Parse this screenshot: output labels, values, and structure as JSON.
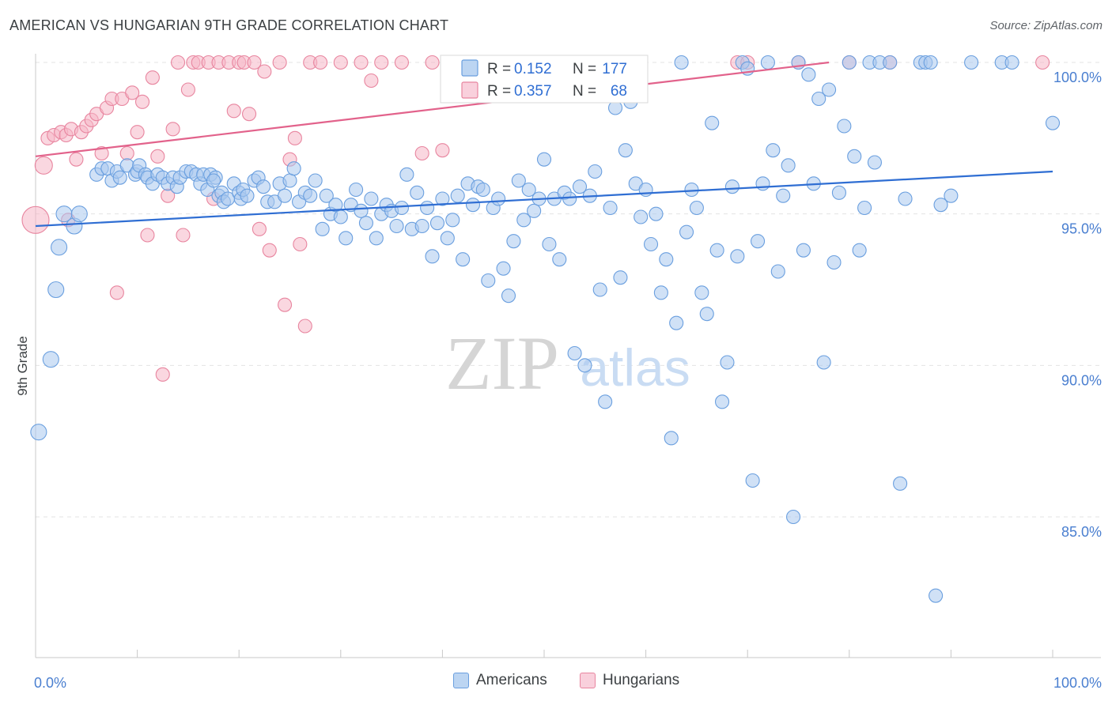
{
  "title": "AMERICAN VS HUNGARIAN 9TH GRADE CORRELATION CHART",
  "source": "Source: ZipAtlas.com",
  "watermark": {
    "zip": "ZIP",
    "atlas": "atlas"
  },
  "chart_data": {
    "type": "scatter",
    "title": "AMERICAN VS HUNGARIAN 9TH GRADE CORRELATION CHART",
    "xlabel": "",
    "ylabel": "9th Grade",
    "xlim": [
      0,
      100
    ],
    "ylim": [
      80.5,
      100.6
    ],
    "x_tick_labels": [
      "0.0%",
      "100.0%"
    ],
    "y_ticks": [
      85,
      90,
      95,
      100
    ],
    "y_tick_labels": [
      "85.0%",
      "90.0%",
      "95.0%",
      "100.0%"
    ],
    "grid": true,
    "legend_position": "top-center",
    "stats": [
      {
        "r_label": "R =",
        "r_value": "0.152",
        "n_label": "N =",
        "n_value": "177"
      },
      {
        "r_label": "R =",
        "r_value": "0.357",
        "n_label": "N =",
        "n_value": "68"
      }
    ],
    "series": [
      {
        "name": "Americans",
        "color": "#6a9fdf",
        "fill": "#a9c8ef",
        "trend": {
          "x": [
            0,
            100
          ],
          "y": [
            94.6,
            96.4
          ]
        },
        "points": [
          [
            0.3,
            87.8
          ],
          [
            1.5,
            90.2
          ],
          [
            2.0,
            92.5
          ],
          [
            2.3,
            93.9
          ],
          [
            2.8,
            95.0
          ],
          [
            3.8,
            94.6
          ],
          [
            4.3,
            95.0
          ],
          [
            6.0,
            96.3
          ],
          [
            6.5,
            96.5
          ],
          [
            7.1,
            96.5
          ],
          [
            7.5,
            96.1
          ],
          [
            8.0,
            96.4
          ],
          [
            8.3,
            96.2
          ],
          [
            9.0,
            96.6
          ],
          [
            9.8,
            96.3
          ],
          [
            10.0,
            96.4
          ],
          [
            10.2,
            96.6
          ],
          [
            10.8,
            96.3
          ],
          [
            11.0,
            96.2
          ],
          [
            11.5,
            96.0
          ],
          [
            12.0,
            96.3
          ],
          [
            12.5,
            96.2
          ],
          [
            13.0,
            96.0
          ],
          [
            13.5,
            96.2
          ],
          [
            13.9,
            95.9
          ],
          [
            14.2,
            96.2
          ],
          [
            14.8,
            96.4
          ],
          [
            15.3,
            96.4
          ],
          [
            15.8,
            96.3
          ],
          [
            16.2,
            96.0
          ],
          [
            16.5,
            96.3
          ],
          [
            16.9,
            95.8
          ],
          [
            17.2,
            96.3
          ],
          [
            17.7,
            96.2
          ],
          [
            17.5,
            96.1
          ],
          [
            18.0,
            95.6
          ],
          [
            18.3,
            95.7
          ],
          [
            18.5,
            95.4
          ],
          [
            18.9,
            95.5
          ],
          [
            19.5,
            96.0
          ],
          [
            20.0,
            95.7
          ],
          [
            20.2,
            95.5
          ],
          [
            20.4,
            95.8
          ],
          [
            20.8,
            95.6
          ],
          [
            21.5,
            96.1
          ],
          [
            21.9,
            96.2
          ],
          [
            22.4,
            95.9
          ],
          [
            22.8,
            95.4
          ],
          [
            23.5,
            95.4
          ],
          [
            24.0,
            96.0
          ],
          [
            24.5,
            95.6
          ],
          [
            25.0,
            96.1
          ],
          [
            25.4,
            96.5
          ],
          [
            25.9,
            95.4
          ],
          [
            26.5,
            95.7
          ],
          [
            27.0,
            95.6
          ],
          [
            27.5,
            96.1
          ],
          [
            28.2,
            94.5
          ],
          [
            28.6,
            95.6
          ],
          [
            29.0,
            95.0
          ],
          [
            29.5,
            95.3
          ],
          [
            30.0,
            94.9
          ],
          [
            30.5,
            94.2
          ],
          [
            31.0,
            95.3
          ],
          [
            31.5,
            95.8
          ],
          [
            32.0,
            95.1
          ],
          [
            32.5,
            94.7
          ],
          [
            33.0,
            95.5
          ],
          [
            33.5,
            94.2
          ],
          [
            34.0,
            95.0
          ],
          [
            34.5,
            95.3
          ],
          [
            35.0,
            95.1
          ],
          [
            35.5,
            94.6
          ],
          [
            36.0,
            95.2
          ],
          [
            36.5,
            96.3
          ],
          [
            37.0,
            94.5
          ],
          [
            37.5,
            95.7
          ],
          [
            38.0,
            94.6
          ],
          [
            38.5,
            95.2
          ],
          [
            39.0,
            93.6
          ],
          [
            39.5,
            94.7
          ],
          [
            40.0,
            95.5
          ],
          [
            40.5,
            94.2
          ],
          [
            41.0,
            94.8
          ],
          [
            41.5,
            95.6
          ],
          [
            42.0,
            93.5
          ],
          [
            42.5,
            96.0
          ],
          [
            43.0,
            95.3
          ],
          [
            43.5,
            95.9
          ],
          [
            44.0,
            95.8
          ],
          [
            44.5,
            92.8
          ],
          [
            45.0,
            95.2
          ],
          [
            45.5,
            95.5
          ],
          [
            46.0,
            93.2
          ],
          [
            46.5,
            92.3
          ],
          [
            47.0,
            94.1
          ],
          [
            47.5,
            96.1
          ],
          [
            48.0,
            94.8
          ],
          [
            48.5,
            95.8
          ],
          [
            49.0,
            95.1
          ],
          [
            49.5,
            95.5
          ],
          [
            50.0,
            96.8
          ],
          [
            50.5,
            94.0
          ],
          [
            51.0,
            95.5
          ],
          [
            51.5,
            93.5
          ],
          [
            52.0,
            95.7
          ],
          [
            52.5,
            95.5
          ],
          [
            53.0,
            90.4
          ],
          [
            53.5,
            95.9
          ],
          [
            54.0,
            90.0
          ],
          [
            54.5,
            95.6
          ],
          [
            55.0,
            96.4
          ],
          [
            55.5,
            92.5
          ],
          [
            56.0,
            88.8
          ],
          [
            56.5,
            95.2
          ],
          [
            57.0,
            98.5
          ],
          [
            57.5,
            92.9
          ],
          [
            58.0,
            97.1
          ],
          [
            58.5,
            98.7
          ],
          [
            59.0,
            96.0
          ],
          [
            59.5,
            94.9
          ],
          [
            60.0,
            95.8
          ],
          [
            60.5,
            94.0
          ],
          [
            61.0,
            95.0
          ],
          [
            61.5,
            92.4
          ],
          [
            62.0,
            93.5
          ],
          [
            62.5,
            87.6
          ],
          [
            63.0,
            91.4
          ],
          [
            63.5,
            100.0
          ],
          [
            64.0,
            94.4
          ],
          [
            64.5,
            95.8
          ],
          [
            65.0,
            95.2
          ],
          [
            65.5,
            92.4
          ],
          [
            66.0,
            91.7
          ],
          [
            66.5,
            98.0
          ],
          [
            67.0,
            93.8
          ],
          [
            67.5,
            88.8
          ],
          [
            68.0,
            90.1
          ],
          [
            68.5,
            95.9
          ],
          [
            69.0,
            93.6
          ],
          [
            69.5,
            100.0
          ],
          [
            70.0,
            99.8
          ],
          [
            70.5,
            86.2
          ],
          [
            71.0,
            94.1
          ],
          [
            71.5,
            96.0
          ],
          [
            72.0,
            100.0
          ],
          [
            72.5,
            97.1
          ],
          [
            73.0,
            93.1
          ],
          [
            73.5,
            95.6
          ],
          [
            74.0,
            96.6
          ],
          [
            74.5,
            85.0
          ],
          [
            75.0,
            100.0
          ],
          [
            75.5,
            93.8
          ],
          [
            76.0,
            99.6
          ],
          [
            76.5,
            96.0
          ],
          [
            77.0,
            98.8
          ],
          [
            77.5,
            90.1
          ],
          [
            78.0,
            99.1
          ],
          [
            78.5,
            93.4
          ],
          [
            79.0,
            95.7
          ],
          [
            79.5,
            97.9
          ],
          [
            80.0,
            100.0
          ],
          [
            80.5,
            96.9
          ],
          [
            81.0,
            93.8
          ],
          [
            81.5,
            95.2
          ],
          [
            82.0,
            100.0
          ],
          [
            82.5,
            96.7
          ],
          [
            83.0,
            100.0
          ],
          [
            84.0,
            100.0
          ],
          [
            85.0,
            86.1
          ],
          [
            85.5,
            95.5
          ],
          [
            87.0,
            100.0
          ],
          [
            87.5,
            100.0
          ],
          [
            88.0,
            100.0
          ],
          [
            88.5,
            82.4
          ],
          [
            89.0,
            95.3
          ],
          [
            90.0,
            95.6
          ],
          [
            92.0,
            100.0
          ],
          [
            95.0,
            100.0
          ],
          [
            96.0,
            100.0
          ],
          [
            100.0,
            98.0
          ]
        ]
      },
      {
        "name": "Hungarians",
        "color": "#e8859f",
        "fill": "#f5b6c7",
        "trend": {
          "x": [
            0,
            78
          ],
          "y": [
            96.9,
            100.0
          ]
        },
        "points": [
          [
            0.0,
            94.8
          ],
          [
            0.8,
            96.6
          ],
          [
            1.2,
            97.5
          ],
          [
            1.8,
            97.6
          ],
          [
            2.5,
            97.7
          ],
          [
            3.0,
            97.6
          ],
          [
            3.5,
            97.8
          ],
          [
            4.0,
            96.8
          ],
          [
            4.5,
            97.7
          ],
          [
            5.0,
            97.9
          ],
          [
            5.5,
            98.1
          ],
          [
            6.0,
            98.3
          ],
          [
            6.5,
            97.0
          ],
          [
            7.0,
            98.5
          ],
          [
            7.5,
            98.8
          ],
          [
            8.0,
            92.4
          ],
          [
            8.5,
            98.8
          ],
          [
            9.0,
            97.0
          ],
          [
            9.5,
            99.0
          ],
          [
            10.0,
            97.7
          ],
          [
            10.5,
            98.7
          ],
          [
            11.0,
            94.3
          ],
          [
            11.5,
            99.5
          ],
          [
            12.0,
            96.9
          ],
          [
            12.5,
            89.7
          ],
          [
            13.0,
            95.6
          ],
          [
            13.5,
            97.8
          ],
          [
            14.0,
            100.0
          ],
          [
            14.5,
            94.3
          ],
          [
            15.0,
            99.1
          ],
          [
            15.5,
            100.0
          ],
          [
            16.0,
            100.0
          ],
          [
            17.0,
            100.0
          ],
          [
            17.5,
            95.5
          ],
          [
            18.0,
            100.0
          ],
          [
            19.0,
            100.0
          ],
          [
            19.5,
            98.4
          ],
          [
            20.0,
            100.0
          ],
          [
            20.5,
            100.0
          ],
          [
            21.0,
            98.3
          ],
          [
            21.5,
            100.0
          ],
          [
            22.0,
            94.5
          ],
          [
            22.5,
            99.7
          ],
          [
            23.0,
            93.8
          ],
          [
            24.0,
            100.0
          ],
          [
            24.5,
            92.0
          ],
          [
            25.0,
            96.8
          ],
          [
            25.5,
            97.5
          ],
          [
            26.0,
            94.0
          ],
          [
            26.5,
            91.3
          ],
          [
            27.0,
            100.0
          ],
          [
            28.0,
            100.0
          ],
          [
            30.0,
            100.0
          ],
          [
            32.0,
            100.0
          ],
          [
            33.0,
            99.4
          ],
          [
            34.0,
            100.0
          ],
          [
            36.0,
            100.0
          ],
          [
            38.0,
            97.0
          ],
          [
            39.0,
            100.0
          ],
          [
            40.0,
            97.1
          ],
          [
            41.0,
            100.0
          ],
          [
            69.0,
            100.0
          ],
          [
            70.0,
            100.0
          ],
          [
            75.0,
            100.0
          ],
          [
            80.0,
            100.0
          ],
          [
            84.0,
            100.0
          ],
          [
            99.0,
            100.0
          ],
          [
            3.2,
            94.8
          ]
        ]
      }
    ]
  }
}
